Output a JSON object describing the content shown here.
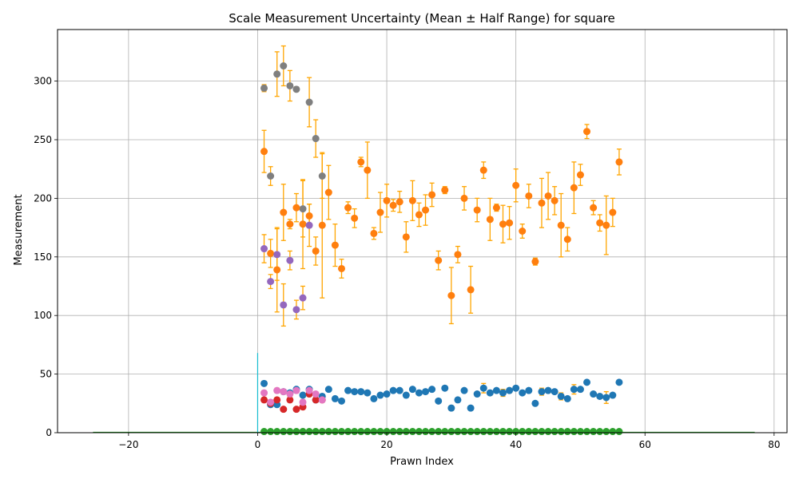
{
  "chart_data": {
    "type": "scatter",
    "title": "Scale Measurement Uncertainty (Mean ± Half Range) for square",
    "xlabel": "Prawn Index",
    "ylabel": "Measurement",
    "xlim": [
      -31,
      82
    ],
    "ylim": [
      0,
      344
    ],
    "xticks": [
      -20,
      0,
      20,
      40,
      60,
      80
    ],
    "yticks": [
      0,
      50,
      100,
      150,
      200,
      250,
      300
    ],
    "grid": true,
    "errorbar_color": "#ffa500",
    "colors": {
      "blue": "#1f77b4",
      "orange": "#ff7f0e",
      "green": "#2ca02c",
      "red": "#d62728",
      "purple": "#9467bd",
      "pink": "#e377c2",
      "gray": "#7f7f7f",
      "cyan": "#17becf"
    },
    "series": [
      {
        "color": "#7f7f7f",
        "x": [
          1,
          2,
          3,
          4,
          5,
          6,
          7,
          8,
          9,
          10
        ],
        "y": [
          294,
          219,
          306,
          313,
          296,
          293,
          191,
          282,
          251,
          219
        ],
        "err": [
          3,
          8,
          19,
          17,
          13,
          2,
          24,
          21,
          16,
          19
        ]
      },
      {
        "color": "#ff7f0e",
        "x": [
          1,
          2,
          3,
          4,
          5,
          6,
          7,
          8,
          9,
          10,
          11,
          12,
          13,
          14,
          15,
          16,
          17,
          18,
          19,
          20,
          21,
          22,
          23,
          24,
          25,
          26,
          27,
          28,
          29,
          30,
          31,
          32,
          33,
          34,
          35,
          36,
          37,
          38,
          39,
          40,
          41,
          42,
          43,
          44,
          45,
          46,
          47,
          48,
          49,
          50,
          51,
          52,
          53,
          54,
          55,
          56
        ],
        "y": [
          240,
          153,
          139,
          188,
          178,
          192,
          178,
          185,
          155,
          177,
          205,
          160,
          140,
          192,
          183,
          231,
          224,
          170,
          188,
          198,
          194,
          197,
          167,
          198,
          186,
          190,
          203,
          147,
          207,
          117,
          152,
          200,
          122,
          190,
          224,
          182,
          192,
          178,
          179,
          211,
          172,
          202,
          146,
          196,
          202,
          198,
          177,
          165,
          209,
          220,
          257,
          192,
          179,
          177,
          188,
          231
        ],
        "err": [
          18,
          12,
          36,
          24,
          4,
          12,
          38,
          10,
          12,
          62,
          23,
          18,
          8,
          5,
          8,
          4,
          24,
          5,
          17,
          14,
          5,
          9,
          13,
          17,
          10,
          13,
          10,
          8,
          3,
          24,
          7,
          10,
          20,
          10,
          7,
          18,
          3,
          16,
          14,
          14,
          6,
          10,
          3,
          21,
          20,
          12,
          27,
          10,
          22,
          9,
          6,
          6,
          7,
          25,
          12,
          11
        ]
      },
      {
        "color": "#1f77b4",
        "x": [
          1,
          2,
          3,
          4,
          5,
          6,
          7,
          8,
          9,
          10,
          11,
          12,
          13,
          14,
          15,
          16,
          17,
          18,
          19,
          20,
          21,
          22,
          23,
          24,
          25,
          26,
          27,
          28,
          29,
          30,
          31,
          32,
          33,
          34,
          35,
          36,
          37,
          38,
          39,
          40,
          41,
          42,
          43,
          44,
          45,
          46,
          47,
          48,
          49,
          50,
          51,
          52,
          53,
          54,
          55,
          56
        ],
        "y": [
          42,
          24,
          24,
          35,
          34,
          37,
          32,
          37,
          28,
          31,
          37,
          29,
          27,
          36,
          35,
          35,
          34,
          29,
          32,
          33,
          36,
          36,
          32,
          37,
          34,
          35,
          37,
          27,
          38,
          21,
          28,
          36,
          21,
          33,
          38,
          34,
          36,
          34,
          36,
          38,
          34,
          36,
          25,
          35,
          36,
          35,
          31,
          29,
          37,
          37,
          43,
          33,
          31,
          30,
          32,
          43
        ],
        "err": [
          2,
          1,
          1,
          2,
          1,
          1,
          2,
          1,
          1,
          1,
          1,
          1,
          1,
          1,
          1,
          1,
          2,
          1,
          1,
          2,
          1,
          1,
          2,
          1,
          1,
          1,
          1,
          1,
          1,
          2,
          1,
          1,
          1,
          1,
          4,
          2,
          1,
          3,
          2,
          1,
          1,
          1,
          1,
          3,
          2,
          1,
          3,
          1,
          4,
          1,
          1,
          1,
          1,
          5,
          1,
          1
        ]
      },
      {
        "color": "#2ca02c",
        "x": [
          1,
          2,
          3,
          4,
          5,
          6,
          7,
          8,
          9,
          10,
          11,
          12,
          13,
          14,
          15,
          16,
          17,
          18,
          19,
          20,
          21,
          22,
          23,
          24,
          25,
          26,
          27,
          28,
          29,
          30,
          31,
          32,
          33,
          34,
          35,
          36,
          37,
          38,
          39,
          40,
          41,
          42,
          43,
          44,
          45,
          46,
          47,
          48,
          49,
          50,
          51,
          52,
          53,
          54,
          55,
          56
        ],
        "y": [
          1,
          1,
          1,
          1,
          1,
          1,
          1,
          1,
          1,
          1,
          1,
          1,
          1,
          1,
          1,
          1,
          1,
          1,
          1,
          1,
          1,
          1,
          1,
          1,
          1,
          1,
          1,
          1,
          1,
          1,
          1,
          1,
          1,
          1,
          1,
          1,
          1,
          1,
          1,
          1,
          1,
          1,
          1,
          1,
          1,
          1,
          1,
          1,
          1,
          1,
          1,
          1,
          1,
          1,
          1,
          1
        ],
        "err": []
      },
      {
        "color": "#d62728",
        "x": [
          1,
          2,
          3,
          4,
          5,
          6,
          7,
          8,
          9,
          10
        ],
        "y": [
          28,
          25,
          28,
          20,
          28,
          20,
          22,
          33,
          28,
          28
        ],
        "err": [
          2,
          2,
          2,
          1,
          2,
          1,
          2,
          2,
          2,
          2
        ]
      },
      {
        "color": "#9467bd",
        "x": [
          1,
          2,
          3,
          4,
          5,
          6,
          7,
          8
        ],
        "y": [
          157,
          129,
          152,
          109,
          147,
          105,
          115,
          177
        ],
        "err": [
          12,
          6,
          22,
          18,
          8,
          8,
          10,
          18
        ]
      },
      {
        "color": "#e377c2",
        "x": [
          1,
          2,
          3,
          4,
          5,
          6,
          7,
          8,
          9,
          10
        ],
        "y": [
          34,
          26,
          36,
          35,
          33,
          36,
          26,
          36,
          33,
          28
        ],
        "err": [
          2,
          2,
          2,
          2,
          2,
          2,
          2,
          2,
          2,
          2
        ]
      }
    ],
    "hist_line": {
      "color": "#17becf",
      "baseline_color": "#2ca02c",
      "x_range": [
        -25.5,
        77
      ],
      "spike_x": 0,
      "spike_height": 68
    }
  }
}
